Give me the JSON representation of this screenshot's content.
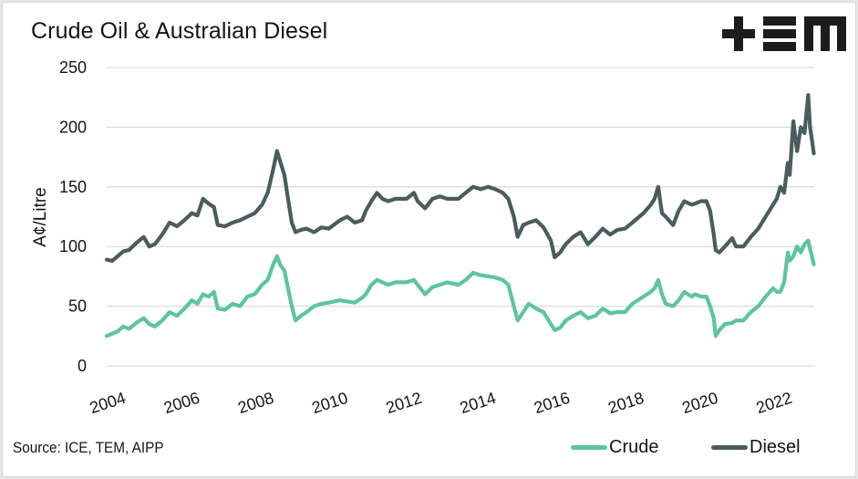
{
  "header": {
    "title": "Crude Oil & Australian Diesel",
    "logo": "tem-logo"
  },
  "footer": {
    "source": "Source: ICE, TEM, AIPP"
  },
  "colors": {
    "crude": "#5cc4a0",
    "diesel": "#4a5d5d",
    "grid": "#dcdcdc",
    "text": "#141414"
  },
  "chart_data": {
    "type": "line",
    "title": "Crude Oil & Australian Diesel",
    "xlabel": "",
    "ylabel": "A¢/Litre",
    "ylim": [
      0,
      250
    ],
    "xlim": [
      2004.0,
      2023.15
    ],
    "yticks": [
      0,
      50,
      100,
      150,
      200,
      250
    ],
    "xticks": [
      "2004",
      "2006",
      "2008",
      "2010",
      "2012",
      "2014",
      "2016",
      "2018",
      "2020",
      "2022"
    ],
    "grid": true,
    "legend": "bottom-right",
    "source": "Source: ICE, TEM, AIPP",
    "series": [
      {
        "name": "Crude",
        "color": "#5cc4a0",
        "x": [
          2004.0,
          2004.15,
          2004.3,
          2004.45,
          2004.6,
          2004.8,
          2005.0,
          2005.15,
          2005.3,
          2005.5,
          2005.7,
          2005.9,
          2006.1,
          2006.3,
          2006.45,
          2006.6,
          2006.75,
          2006.9,
          2007.0,
          2007.2,
          2007.4,
          2007.6,
          2007.8,
          2008.0,
          2008.2,
          2008.35,
          2008.5,
          2008.6,
          2008.7,
          2008.8,
          2008.9,
          2009.0,
          2009.1,
          2009.25,
          2009.4,
          2009.6,
          2009.8,
          2010.0,
          2010.3,
          2010.5,
          2010.7,
          2010.9,
          2011.0,
          2011.15,
          2011.3,
          2011.45,
          2011.6,
          2011.8,
          2012.1,
          2012.3,
          2012.4,
          2012.6,
          2012.8,
          2013.0,
          2013.2,
          2013.5,
          2013.7,
          2013.9,
          2014.1,
          2014.3,
          2014.5,
          2014.7,
          2014.85,
          2015.0,
          2015.1,
          2015.25,
          2015.4,
          2015.6,
          2015.8,
          2016.0,
          2016.1,
          2016.25,
          2016.4,
          2016.6,
          2016.8,
          2017.0,
          2017.2,
          2017.4,
          2017.6,
          2017.8,
          2018.0,
          2018.2,
          2018.5,
          2018.7,
          2018.8,
          2018.9,
          2019.0,
          2019.1,
          2019.3,
          2019.45,
          2019.6,
          2019.8,
          2019.9,
          2020.05,
          2020.2,
          2020.3,
          2020.4,
          2020.45,
          2020.55,
          2020.7,
          2020.9,
          2021.0,
          2021.2,
          2021.4,
          2021.6,
          2021.8,
          2022.0,
          2022.1,
          2022.2,
          2022.3,
          2022.4,
          2022.45,
          2022.55,
          2022.65,
          2022.75,
          2022.85,
          2022.95,
          2023.0,
          2023.05,
          2023.1
        ],
        "values": [
          25,
          27,
          29,
          33,
          31,
          36,
          40,
          35,
          33,
          38,
          45,
          42,
          48,
          55,
          52,
          60,
          58,
          62,
          48,
          47,
          52,
          50,
          58,
          60,
          68,
          72,
          85,
          92,
          84,
          80,
          65,
          50,
          38,
          42,
          45,
          50,
          52,
          53,
          55,
          54,
          53,
          57,
          60,
          68,
          72,
          70,
          68,
          70,
          70,
          72,
          68,
          60,
          66,
          68,
          70,
          68,
          72,
          78,
          76,
          75,
          74,
          72,
          68,
          50,
          38,
          45,
          52,
          48,
          45,
          35,
          30,
          32,
          38,
          42,
          45,
          40,
          42,
          48,
          44,
          45,
          45,
          52,
          58,
          62,
          65,
          72,
          60,
          52,
          50,
          55,
          62,
          58,
          60,
          58,
          58,
          50,
          40,
          25,
          30,
          35,
          36,
          38,
          38,
          45,
          50,
          58,
          65,
          62,
          62,
          70,
          95,
          88,
          92,
          100,
          95,
          102,
          105,
          98,
          92,
          85
        ]
      },
      {
        "name": "Diesel",
        "color": "#4a5d5d",
        "x": [
          2004.0,
          2004.15,
          2004.3,
          2004.45,
          2004.6,
          2004.8,
          2005.0,
          2005.15,
          2005.3,
          2005.5,
          2005.7,
          2005.9,
          2006.1,
          2006.3,
          2006.45,
          2006.6,
          2006.75,
          2006.9,
          2007.0,
          2007.2,
          2007.4,
          2007.6,
          2007.8,
          2008.0,
          2008.2,
          2008.35,
          2008.5,
          2008.6,
          2008.7,
          2008.8,
          2008.9,
          2009.0,
          2009.1,
          2009.25,
          2009.4,
          2009.6,
          2009.8,
          2010.0,
          2010.3,
          2010.5,
          2010.7,
          2010.9,
          2011.0,
          2011.15,
          2011.3,
          2011.45,
          2011.6,
          2011.8,
          2012.1,
          2012.3,
          2012.4,
          2012.6,
          2012.8,
          2013.0,
          2013.2,
          2013.5,
          2013.7,
          2013.9,
          2014.1,
          2014.3,
          2014.5,
          2014.7,
          2014.85,
          2015.0,
          2015.1,
          2015.25,
          2015.4,
          2015.6,
          2015.8,
          2016.0,
          2016.1,
          2016.25,
          2016.4,
          2016.6,
          2016.8,
          2017.0,
          2017.2,
          2017.4,
          2017.6,
          2017.8,
          2018.0,
          2018.2,
          2018.5,
          2018.7,
          2018.8,
          2018.9,
          2019.0,
          2019.1,
          2019.3,
          2019.45,
          2019.6,
          2019.8,
          2019.9,
          2020.05,
          2020.2,
          2020.3,
          2020.4,
          2020.45,
          2020.55,
          2020.7,
          2020.9,
          2021.0,
          2021.2,
          2021.4,
          2021.6,
          2021.8,
          2022.0,
          2022.1,
          2022.2,
          2022.3,
          2022.4,
          2022.45,
          2022.55,
          2022.65,
          2022.75,
          2022.85,
          2022.95,
          2023.0,
          2023.05,
          2023.1
        ],
        "values": [
          89,
          88,
          92,
          96,
          97,
          103,
          108,
          100,
          102,
          110,
          120,
          117,
          122,
          128,
          126,
          140,
          136,
          133,
          118,
          117,
          120,
          122,
          125,
          128,
          135,
          145,
          165,
          180,
          170,
          160,
          140,
          120,
          112,
          114,
          115,
          112,
          116,
          115,
          122,
          125,
          120,
          122,
          130,
          138,
          145,
          140,
          138,
          140,
          140,
          145,
          138,
          132,
          140,
          142,
          140,
          140,
          145,
          150,
          148,
          150,
          148,
          145,
          140,
          125,
          108,
          118,
          120,
          122,
          116,
          105,
          91,
          95,
          102,
          108,
          112,
          102,
          108,
          115,
          110,
          114,
          115,
          120,
          128,
          135,
          140,
          150,
          128,
          125,
          118,
          130,
          138,
          135,
          136,
          138,
          138,
          130,
          110,
          97,
          95,
          100,
          107,
          100,
          100,
          108,
          115,
          125,
          135,
          140,
          150,
          145,
          170,
          160,
          205,
          180,
          200,
          195,
          227,
          200,
          190,
          178
        ]
      }
    ]
  }
}
